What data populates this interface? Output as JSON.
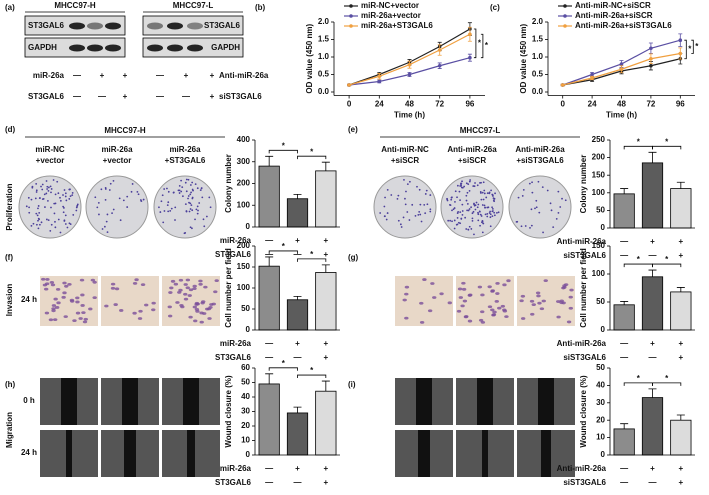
{
  "panel_labels": [
    "(a)",
    "(b)",
    "(c)",
    "(d)",
    "(e)",
    "(f)",
    "(g)",
    "(h)",
    "(i)"
  ],
  "blot": {
    "groups": [
      {
        "name": "MHCC97-H",
        "proteins": [
          "ST3GAL6",
          "GAPDH"
        ]
      },
      {
        "name": "MHCC97-L",
        "proteins": [
          "ST3GAL6",
          "GAPDH"
        ]
      }
    ],
    "treatments": [
      {
        "name": "miR-26a",
        "signs": [
          "—",
          "+",
          "+"
        ]
      },
      {
        "name": "ST3GAL6",
        "signs": [
          "—",
          "—",
          "+"
        ]
      },
      {
        "name": "Anti-miR-26a",
        "signs": [
          "—",
          "+",
          "+"
        ]
      },
      {
        "name": "siST3GAL6",
        "signs": [
          "—",
          "—",
          "+"
        ]
      }
    ]
  },
  "image_panels": [
    {
      "cell_line": "MHCC97-H",
      "columns": [
        [
          "miR-NC",
          "+vector"
        ],
        [
          "miR-26a",
          "+vector"
        ],
        [
          "miR-26a",
          "+ST3GAL6"
        ]
      ]
    },
    {
      "cell_line": "MHCC97-L",
      "columns": [
        [
          "Anti-miR-NC",
          "+siSCR"
        ],
        [
          "Anti-miR-26a",
          "+siSCR"
        ],
        [
          "Anti-miR-26a",
          "+siST3GAL6"
        ]
      ]
    }
  ],
  "row_labels": [
    "Proliferation",
    "Invasion",
    "Migration"
  ],
  "time_labels": [
    "24 h",
    "0 h",
    "24 h"
  ],
  "chart_data": [
    {
      "type": "line",
      "y_label": "OD value (450 nm)",
      "x_label": "Time (h)",
      "x": [
        0,
        24,
        48,
        72,
        96
      ],
      "xlim": [
        -12,
        108
      ],
      "xticks": [
        0,
        24,
        48,
        72,
        96
      ],
      "ylim": [
        -0.1,
        2.0
      ],
      "yticks": [
        {
          "value": 0,
          "label": "0.0"
        },
        {
          "value": 0.5,
          "label": "0.5"
        },
        {
          "value": 1,
          "label": "1.0"
        },
        {
          "value": 1.5,
          "label": "1.5"
        },
        {
          "value": 2,
          "label": "2.0"
        }
      ],
      "legend": "upper left",
      "significance": [
        "*",
        "*"
      ],
      "series": [
        {
          "name": "miR-NC+vector",
          "color": "#222222",
          "values": [
            0.2,
            0.5,
            0.85,
            1.3,
            1.8
          ],
          "errors": [
            0.02,
            0.06,
            0.08,
            0.12,
            0.18
          ]
        },
        {
          "name": "miR-26a+vector",
          "color": "#5a4fa3",
          "values": [
            0.2,
            0.3,
            0.5,
            0.75,
            0.98
          ],
          "errors": [
            0.02,
            0.04,
            0.06,
            0.08,
            0.1
          ]
        },
        {
          "name": "miR-26a+ST3GAL6",
          "color": "#f0a040",
          "values": [
            0.2,
            0.45,
            0.78,
            1.2,
            1.65
          ],
          "errors": [
            0.02,
            0.08,
            0.1,
            0.15,
            0.2
          ]
        }
      ]
    },
    {
      "type": "line",
      "y_label": "OD value (450 nm)",
      "x_label": "Time (h)",
      "x": [
        0,
        24,
        48,
        72,
        96
      ],
      "xlim": [
        -12,
        108
      ],
      "xticks": [
        0,
        24,
        48,
        72,
        96
      ],
      "ylim": [
        -0.1,
        2.0
      ],
      "yticks": [
        {
          "value": 0,
          "label": "0.0"
        },
        {
          "value": 0.5,
          "label": "0.5"
        },
        {
          "value": 1,
          "label": "1.0"
        },
        {
          "value": 1.5,
          "label": "1.5"
        },
        {
          "value": 2,
          "label": "2.0"
        }
      ],
      "legend": "upper left",
      "significance": [
        "*",
        "*"
      ],
      "series": [
        {
          "name": "Anti-miR-NC+siSCR",
          "color": "#222222",
          "values": [
            0.2,
            0.35,
            0.6,
            0.75,
            0.95
          ],
          "errors": [
            0.02,
            0.05,
            0.08,
            0.12,
            0.15
          ]
        },
        {
          "name": "Anti-miR-26a+siSCR",
          "color": "#5a4fa3",
          "values": [
            0.2,
            0.5,
            0.8,
            1.25,
            1.48
          ],
          "errors": [
            0.02,
            0.06,
            0.1,
            0.15,
            0.18
          ]
        },
        {
          "name": "Anti-miR-26a+siST3GAL6",
          "color": "#f0a040",
          "values": [
            0.2,
            0.4,
            0.65,
            0.95,
            1.1
          ],
          "errors": [
            0.02,
            0.05,
            0.1,
            0.14,
            0.16
          ]
        }
      ]
    },
    {
      "type": "bar",
      "y_label": "Colony number",
      "ylim": [
        0,
        400
      ],
      "yticks": [
        0,
        100,
        200,
        300,
        400
      ],
      "values": [
        280,
        130,
        258
      ],
      "errors": [
        45,
        20,
        40
      ],
      "colors": [
        "#8c8c8c",
        "#5c5c5c",
        "#dcdcdc"
      ],
      "significance": [
        "*",
        "*"
      ],
      "conditions": [
        {
          "name": "miR-26a",
          "signs": [
            "—",
            "+",
            "+"
          ]
        },
        {
          "name": "ST3GAL6",
          "signs": [
            "—",
            "—",
            "+"
          ]
        }
      ]
    },
    {
      "type": "bar",
      "y_label": "Colony number",
      "ylim": [
        0,
        250
      ],
      "yticks": [
        0,
        50,
        100,
        150,
        200,
        250
      ],
      "values": [
        97,
        185,
        112
      ],
      "errors": [
        15,
        30,
        18
      ],
      "colors": [
        "#8c8c8c",
        "#5c5c5c",
        "#dcdcdc"
      ],
      "significance": [
        "*",
        "*"
      ],
      "conditions": [
        {
          "name": "Anti-miR-26a",
          "signs": [
            "—",
            "+",
            "+"
          ]
        },
        {
          "name": "siST3GAL6",
          "signs": [
            "—",
            "—",
            "+"
          ]
        }
      ]
    },
    {
      "type": "bar",
      "y_label": "Cell number per field",
      "ylim": [
        0,
        200
      ],
      "yticks": [
        0,
        50,
        100,
        150,
        200
      ],
      "values": [
        152,
        72,
        137
      ],
      "errors": [
        22,
        8,
        18
      ],
      "colors": [
        "#8c8c8c",
        "#5c5c5c",
        "#dcdcdc"
      ],
      "significance": [
        "*",
        "*"
      ],
      "conditions": [
        {
          "name": "miR-26a",
          "signs": [
            "—",
            "+",
            "+"
          ]
        },
        {
          "name": "ST3GAL6",
          "signs": [
            "—",
            "—",
            "+"
          ]
        }
      ]
    },
    {
      "type": "bar",
      "y_label": "Cell number per field",
      "ylim": [
        0,
        150
      ],
      "yticks": [
        0,
        50,
        100,
        150
      ],
      "values": [
        45,
        95,
        68
      ],
      "errors": [
        6,
        12,
        8
      ],
      "colors": [
        "#8c8c8c",
        "#5c5c5c",
        "#dcdcdc"
      ],
      "significance": [
        "*",
        "*"
      ],
      "conditions": [
        {
          "name": "Anti-miR-26a",
          "signs": [
            "—",
            "+",
            "+"
          ]
        },
        {
          "name": "siST3GAL6",
          "signs": [
            "—",
            "—",
            "+"
          ]
        }
      ]
    },
    {
      "type": "bar",
      "y_label": "Wound closure (%)",
      "ylim": [
        0,
        60
      ],
      "yticks": [
        0,
        10,
        20,
        30,
        40,
        50,
        60
      ],
      "values": [
        49,
        29,
        44
      ],
      "errors": [
        7,
        4,
        7
      ],
      "colors": [
        "#8c8c8c",
        "#5c5c5c",
        "#dcdcdc"
      ],
      "significance": [
        "*",
        "*"
      ],
      "conditions": [
        {
          "name": "miR-26a",
          "signs": [
            "—",
            "+",
            "+"
          ]
        },
        {
          "name": "ST3GAL6",
          "signs": [
            "—",
            "—",
            "+"
          ]
        }
      ]
    },
    {
      "type": "bar",
      "y_label": "Wound closure (%)",
      "ylim": [
        0,
        50
      ],
      "yticks": [
        0,
        10,
        20,
        30,
        40,
        50
      ],
      "values": [
        15,
        33,
        20
      ],
      "errors": [
        3,
        5,
        3
      ],
      "colors": [
        "#8c8c8c",
        "#5c5c5c",
        "#dcdcdc"
      ],
      "significance": [
        "*",
        "*"
      ],
      "conditions": [
        {
          "name": "Anti-miR-26a",
          "signs": [
            "—",
            "+",
            "+"
          ]
        },
        {
          "name": "siST3GAL6",
          "signs": [
            "—",
            "—",
            "+"
          ]
        }
      ]
    }
  ]
}
